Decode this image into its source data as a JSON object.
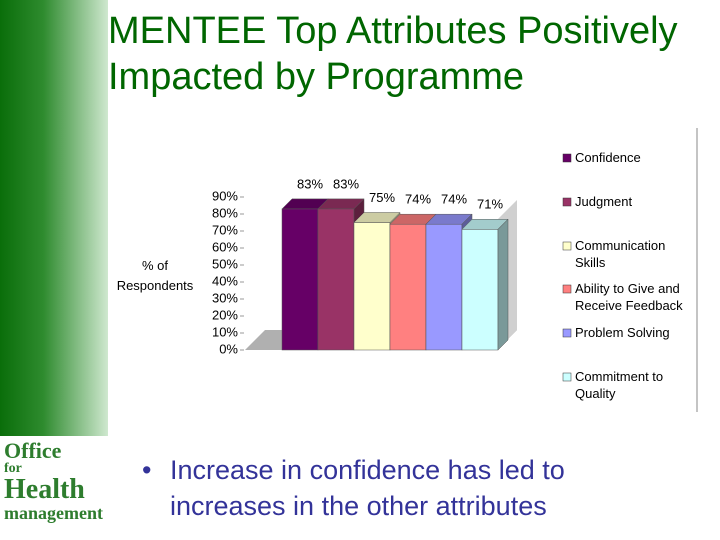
{
  "title": "MENTEE Top Attributes Positively Impacted by Programme",
  "logo": {
    "line1": "Office",
    "line2": "for",
    "line3": "Health",
    "line4": "management"
  },
  "bullet": "Increase in confidence has led to increases in the other attributes",
  "chart_data": {
    "type": "bar",
    "y_label": "% of Respondents",
    "ylim": [
      0,
      90
    ],
    "yticks": [
      {
        "value": 0,
        "label": "0%"
      },
      {
        "value": 10,
        "label": "10%"
      },
      {
        "value": 20,
        "label": "20%"
      },
      {
        "value": 30,
        "label": "30%"
      },
      {
        "value": 40,
        "label": "40%"
      },
      {
        "value": 50,
        "label": "50%"
      },
      {
        "value": 60,
        "label": "60%"
      },
      {
        "value": 70,
        "label": "70%"
      },
      {
        "value": 80,
        "label": "80%"
      },
      {
        "value": 90,
        "label": "90%"
      }
    ],
    "series": [
      {
        "name": "Confidence",
        "color": "#660066",
        "values": [
          83
        ],
        "value_labels": [
          "83%"
        ]
      },
      {
        "name": "Judgment",
        "color": "#993366",
        "values": [
          83
        ],
        "value_labels": [
          "83%"
        ]
      },
      {
        "name": "Communication Skills",
        "color": "#ffffcc",
        "values": [
          75
        ],
        "value_labels": [
          "75%"
        ]
      },
      {
        "name": "Ability to Give and Receive Feedback",
        "color": "#ff8080",
        "values": [
          74
        ],
        "value_labels": [
          "74%"
        ]
      },
      {
        "name": "Problem Solving",
        "color": "#9999ff",
        "values": [
          74
        ],
        "value_labels": [
          "74%"
        ]
      },
      {
        "name": "Commitment to Quality",
        "color": "#ccffff",
        "values": [
          71
        ],
        "value_labels": [
          "71%"
        ]
      }
    ]
  }
}
